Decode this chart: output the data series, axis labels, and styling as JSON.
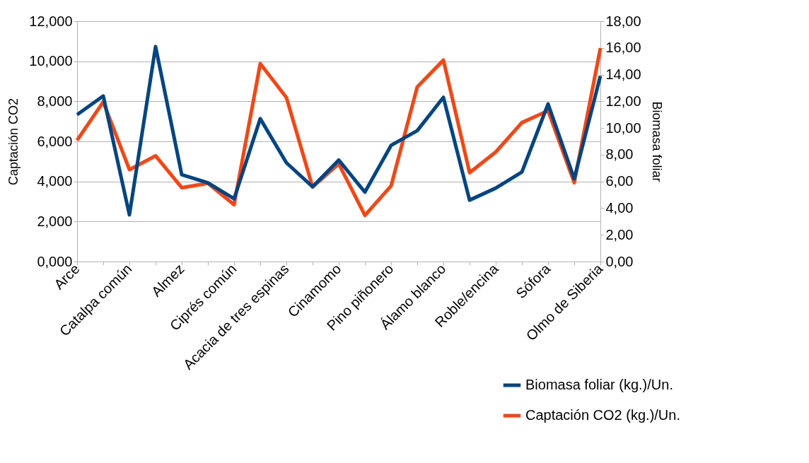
{
  "chart_data": {
    "type": "line",
    "categories": [
      "Arce",
      null,
      "Catalpa común",
      null,
      "Almez",
      null,
      "Ciprés común",
      null,
      "Acacia de tres espinas",
      null,
      "Cinamomo",
      null,
      "Pino piñonero",
      null,
      "Álamo blanco",
      null,
      "Roble/encina",
      null,
      "Sófora",
      null,
      "Olmo de Siberia"
    ],
    "ylabel": "Captación CO2",
    "y2label": "Biomasa foliar",
    "ylim": [
      0,
      12
    ],
    "yticks": [
      {
        "value": 0,
        "label": "0,000"
      },
      {
        "value": 2,
        "label": "2,000"
      },
      {
        "value": 4,
        "label": "4,000"
      },
      {
        "value": 6,
        "label": "6,000"
      },
      {
        "value": 8,
        "label": "8,000"
      },
      {
        "value": 10,
        "label": "10,000"
      },
      {
        "value": 12,
        "label": "12,000"
      }
    ],
    "y2lim": [
      0,
      18
    ],
    "y2ticks": [
      {
        "value": 0,
        "label": "0,00"
      },
      {
        "value": 2,
        "label": "2,00"
      },
      {
        "value": 4,
        "label": "4,00"
      },
      {
        "value": 6,
        "label": "6,00"
      },
      {
        "value": 8,
        "label": "8,00"
      },
      {
        "value": 10,
        "label": "10,00"
      },
      {
        "value": 12,
        "label": "12,00"
      },
      {
        "value": 14,
        "label": "14,00"
      },
      {
        "value": 16,
        "label": "16,00"
      },
      {
        "value": 18,
        "label": "18,00"
      }
    ],
    "series": [
      {
        "name": "Biomasa foliar (kg.)/Un.",
        "color": "#004586",
        "axis": "y2",
        "values": [
          11.0,
          12.4,
          3.5,
          16.1,
          6.5,
          5.9,
          4.7,
          10.7,
          7.4,
          5.6,
          7.6,
          5.2,
          8.7,
          9.8,
          12.3,
          4.6,
          5.5,
          6.7,
          11.8,
          6.2,
          13.9
        ]
      },
      {
        "name": "Captación CO2 (kg.)/Un.",
        "color": "#ff420e",
        "axis": "y",
        "values": [
          6.06,
          7.97,
          4.59,
          5.28,
          3.69,
          3.91,
          2.84,
          9.88,
          8.19,
          3.72,
          4.88,
          2.31,
          3.78,
          8.72,
          10.06,
          4.44,
          5.47,
          6.94,
          7.53,
          3.94,
          10.66
        ]
      }
    ],
    "grid": "y",
    "legend": "bottom right",
    "marker": "none",
    "line_style": "solid"
  }
}
